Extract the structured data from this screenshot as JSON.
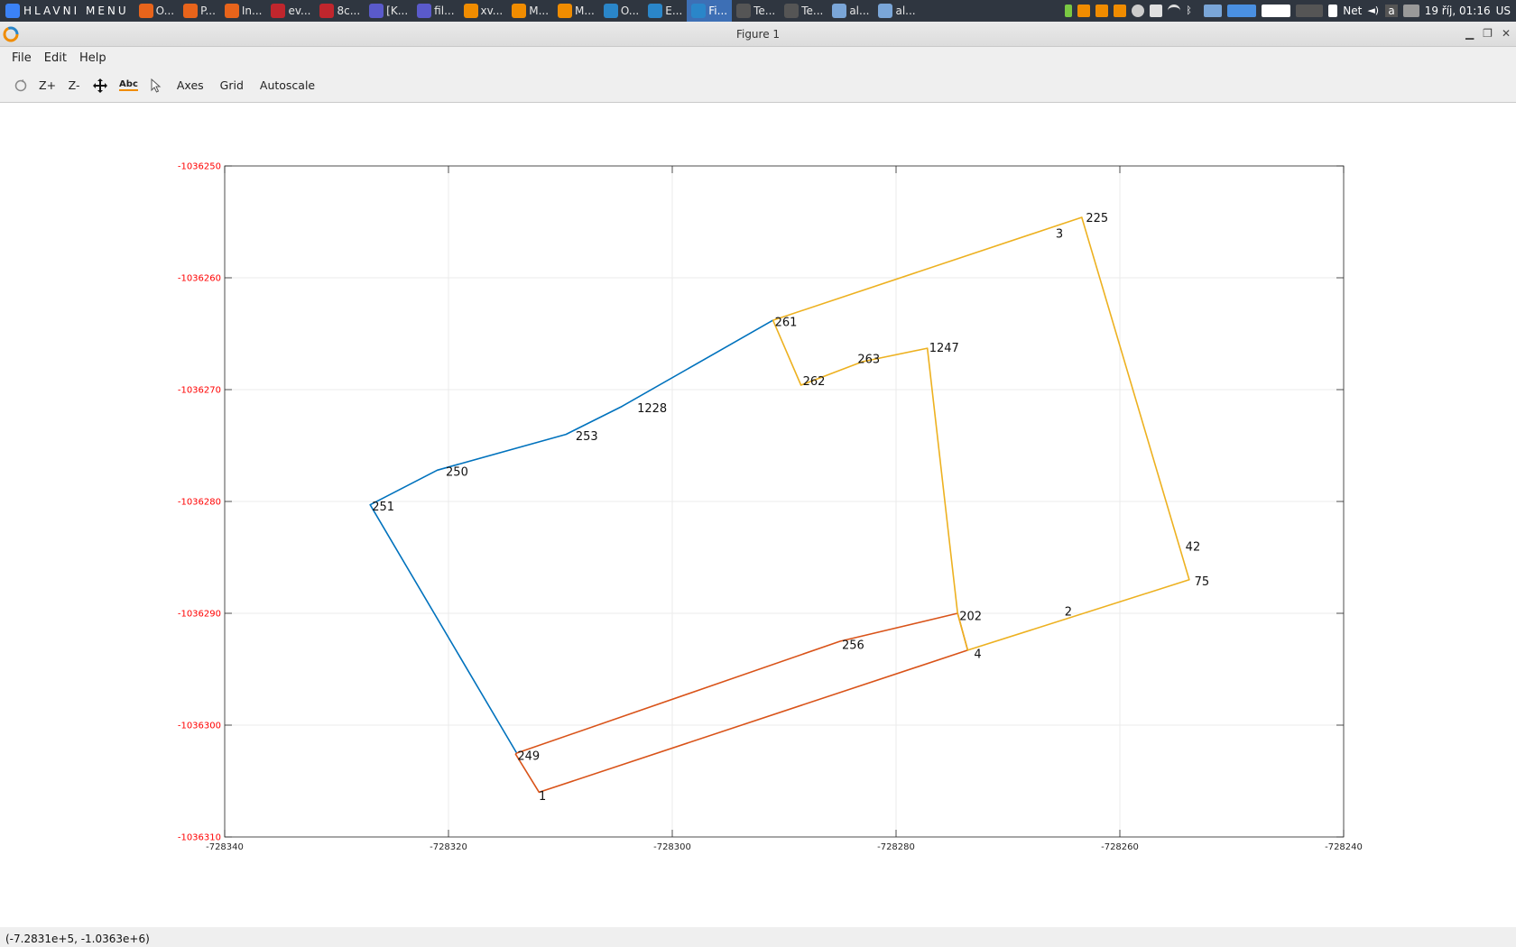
{
  "taskbar": {
    "start_label": "HLAVNI MENU",
    "tasks": [
      {
        "label": "O...",
        "color": "#e8641b"
      },
      {
        "label": "P...",
        "color": "#e8641b"
      },
      {
        "label": "In...",
        "color": "#e8641b"
      },
      {
        "label": "ev...",
        "color": "#c0262d"
      },
      {
        "label": "8c...",
        "color": "#c0262d"
      },
      {
        "label": "[K...",
        "color": "#5a5acb"
      },
      {
        "label": "fil...",
        "color": "#5a5acb"
      },
      {
        "label": "xv...",
        "color": "#f08c00"
      },
      {
        "label": "M...",
        "color": "#f08c00"
      },
      {
        "label": "M...",
        "color": "#f08c00"
      },
      {
        "label": "O...",
        "color": "#2a86c9"
      },
      {
        "label": "E...",
        "color": "#2a86c9"
      },
      {
        "label": "Fi...",
        "color": "#2a86c9",
        "active": true
      },
      {
        "label": "Te...",
        "color": "#555555"
      },
      {
        "label": "Te...",
        "color": "#555555"
      },
      {
        "label": "al...",
        "color": "#7aa6d8"
      },
      {
        "label": "al...",
        "color": "#7aa6d8"
      }
    ],
    "tray": {
      "net_label": "Net",
      "keyboard_label": "a",
      "clock": "19 říj, 01:16",
      "layout": "US"
    }
  },
  "window": {
    "title": "Figure 1",
    "menu": [
      "File",
      "Edit",
      "Help"
    ],
    "toolbar": {
      "rotate_icon": "rotate-icon",
      "zoom_in": "Z+",
      "zoom_out": "Z-",
      "pan_icon": "pan-icon",
      "text_icon_label": "Abc",
      "select_icon": "pointer-icon",
      "axes": "Axes",
      "grid": "Grid",
      "autoscale": "Autoscale"
    },
    "status": "(-7.2831e+5, -1.0363e+6)"
  },
  "chart_data": {
    "type": "line",
    "title": "",
    "xlabel": "",
    "ylabel": "",
    "xlim": [
      -728340,
      -728240
    ],
    "ylim": [
      -1036310,
      -1036250
    ],
    "xticks": [
      -728340,
      -728320,
      -728300,
      -728280,
      -728260,
      -728240
    ],
    "yticks": [
      -1036250,
      -1036260,
      -1036270,
      -1036280,
      -1036290,
      -1036300,
      -1036310
    ],
    "xtick_labels": [
      "-728340",
      "-728320",
      "-728300",
      "-728280",
      "-728260",
      "-728240"
    ],
    "ytick_labels": [
      "-1036250",
      "-1036260",
      "-1036270",
      "-1036280",
      "-1036290",
      "-1036300",
      "-1036310"
    ],
    "grid": true,
    "ytick_color": "#ff0000",
    "series": [
      {
        "color": "#0072bd",
        "x": [
          -728313.9,
          -728327.0,
          -728321.0,
          -728309.5,
          -728304.5,
          -728291.0
        ],
        "y": [
          -1036302.5,
          -1036280.3,
          -1036277.2,
          -1036274.0,
          -1036271.5,
          -1036263.8
        ]
      },
      {
        "color": "#d95319",
        "x": [
          -728313.9,
          -728314.0,
          -728311.9,
          -728273.6,
          -728274.5,
          -728285.0,
          -728313.9
        ],
        "y": [
          -1036302.5,
          -1036302.6,
          -1036306.0,
          -1036293.3,
          -1036290.0,
          -1036292.5,
          -1036302.5
        ]
      },
      {
        "color": "#edb120",
        "x": [
          -728291.0,
          -728288.5,
          -728283.0,
          -728277.2,
          -728274.5,
          -728273.6,
          -728253.8,
          -728263.4,
          -728291.0
        ],
        "y": [
          -1036263.8,
          -1036269.6,
          -1036267.5,
          -1036266.3,
          -1036290.0,
          -1036293.3,
          -1036287.0,
          -1036254.6,
          -1036263.8
        ]
      }
    ],
    "point_labels": [
      {
        "text": "225",
        "x": -728263.2,
        "y": -1036254.6
      },
      {
        "text": "3",
        "x": -728265.9,
        "y": -1036256.0
      },
      {
        "text": "261",
        "x": -728291.0,
        "y": -1036263.9
      },
      {
        "text": "1247",
        "x": -728277.2,
        "y": -1036266.2
      },
      {
        "text": "263",
        "x": -728283.6,
        "y": -1036267.2
      },
      {
        "text": "262",
        "x": -728288.5,
        "y": -1036269.2
      },
      {
        "text": "1228",
        "x": -728303.3,
        "y": -1036271.6
      },
      {
        "text": "253",
        "x": -728308.8,
        "y": -1036274.1
      },
      {
        "text": "250",
        "x": -728320.4,
        "y": -1036277.3
      },
      {
        "text": "251",
        "x": -728327.0,
        "y": -1036280.4
      },
      {
        "text": "42",
        "x": -728254.3,
        "y": -1036284.0
      },
      {
        "text": "75",
        "x": -728253.5,
        "y": -1036287.1
      },
      {
        "text": "2",
        "x": -728265.1,
        "y": -1036289.8
      },
      {
        "text": "202",
        "x": -728274.5,
        "y": -1036290.2
      },
      {
        "text": "256",
        "x": -728285.0,
        "y": -1036292.8
      },
      {
        "text": "4",
        "x": -728273.2,
        "y": -1036293.6
      },
      {
        "text": "249",
        "x": -728314.0,
        "y": -1036302.7
      },
      {
        "text": "1",
        "x": -728312.1,
        "y": -1036306.3
      }
    ]
  }
}
